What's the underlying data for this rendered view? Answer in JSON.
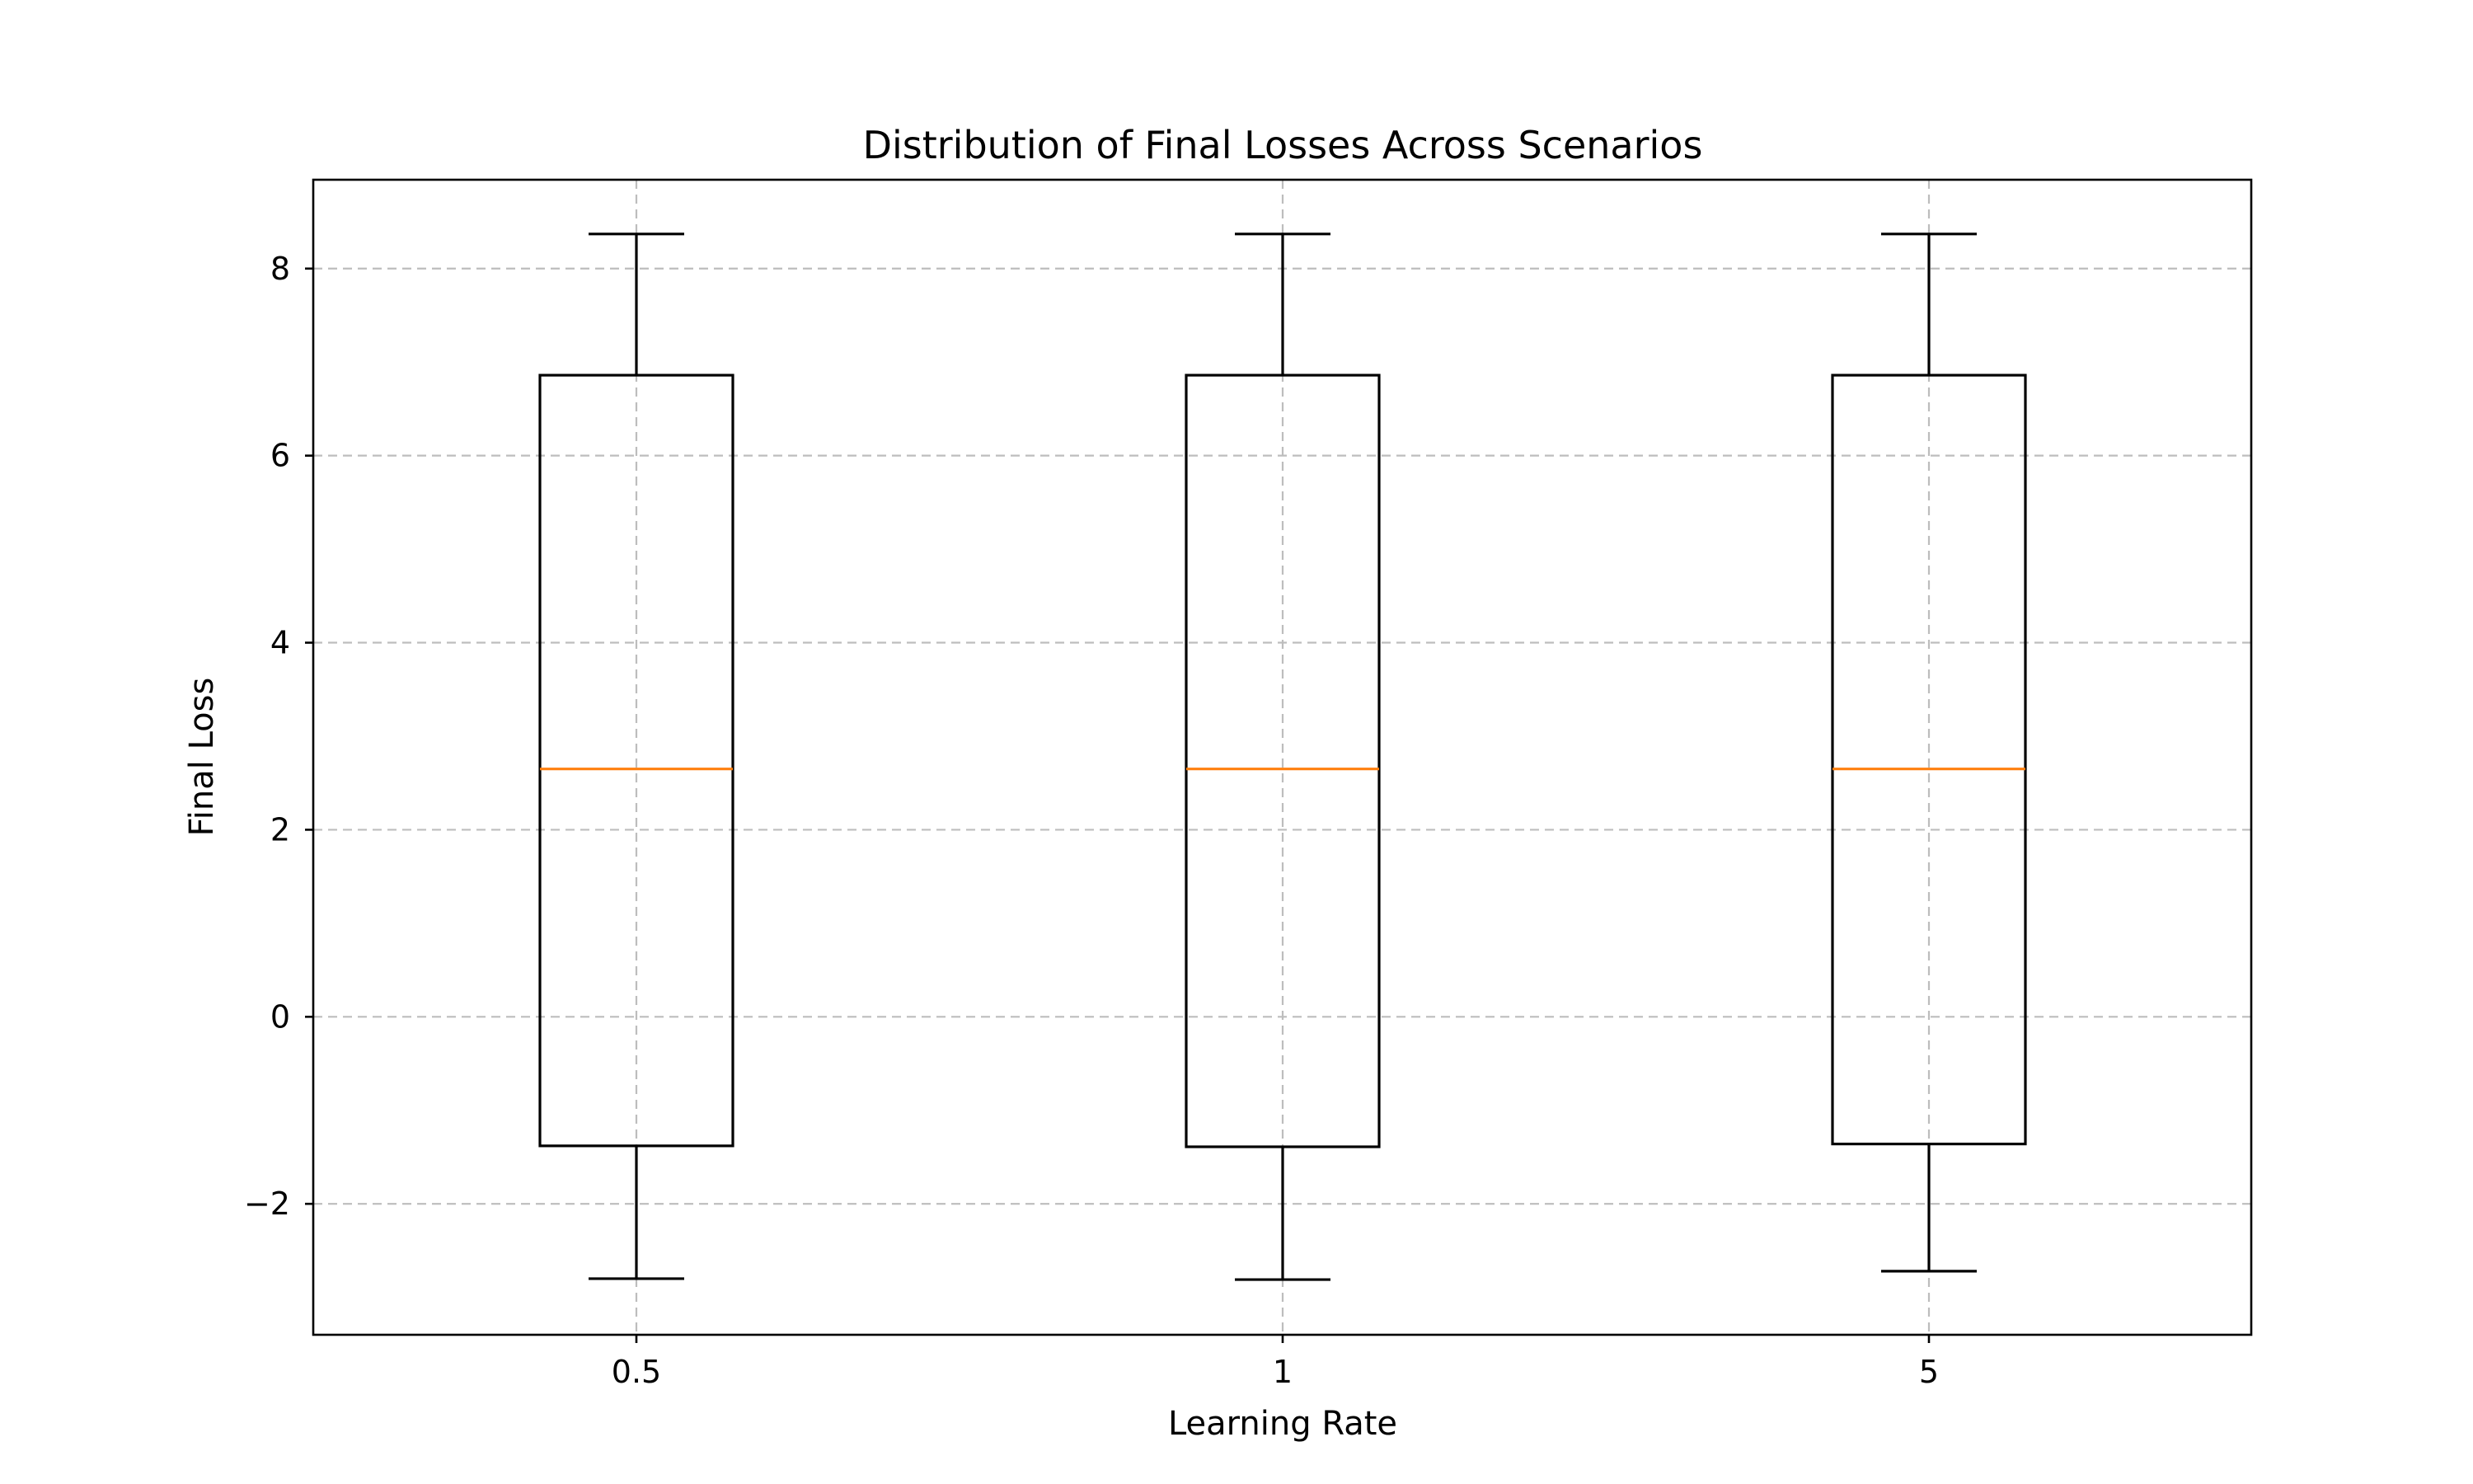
{
  "chart_data": {
    "type": "box",
    "title": "Distribution of Final Losses Across Scenarios",
    "xlabel": "Learning Rate",
    "ylabel": "Final Loss",
    "categories": [
      "0.5",
      "1",
      "5"
    ],
    "boxes": [
      {
        "category": "0.5",
        "whisker_low": -2.8,
        "q1": -1.38,
        "median": 2.65,
        "q3": 6.86,
        "whisker_high": 8.37
      },
      {
        "category": "1",
        "whisker_low": -2.81,
        "q1": -1.39,
        "median": 2.65,
        "q3": 6.86,
        "whisker_high": 8.37
      },
      {
        "category": "5",
        "whisker_low": -2.72,
        "q1": -1.36,
        "median": 2.65,
        "q3": 6.86,
        "whisker_high": 8.37
      }
    ],
    "ylim": [
      -3.4,
      8.95
    ],
    "yticks": [
      -2,
      0,
      2,
      4,
      6,
      8
    ],
    "ytick_labels": [
      "−2",
      "0",
      "2",
      "4",
      "6",
      "8"
    ],
    "grid": true,
    "colors": {
      "box": "#000000",
      "median": "#ff7f0e",
      "grid": "#bdbdbd"
    }
  }
}
